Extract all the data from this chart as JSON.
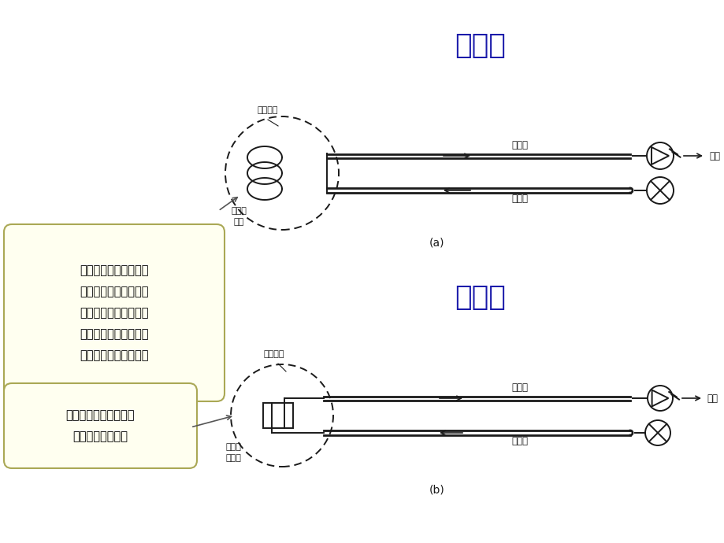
{
  "bg_color": "#ffffff",
  "title1": "传感型",
  "title2": "传光型",
  "title_color": "#1a1aaa",
  "title_fontsize": 26,
  "box1_text": "光纤本身起敏感元件的\n作用。光纤与被测物理\n量相互作用时，光纤自\n身的结构参量或者光纤\n的传光特性发生变化。",
  "box2_text": "光纤不做为敏感器件，\n只起传到光的作用",
  "box_bg": "#fffff0",
  "box_border": "#aaa855",
  "label_a": "(a)",
  "label_b": "(b)",
  "text_被测对象1": "被测对象",
  "text_敏感光纤头": "敏感光\n纤头",
  "text_空载波1": "空载波",
  "text_调制波1": "调制波",
  "text_信息1": "信息",
  "text_被测对象2": "被测对象",
  "text_光转换敏感头": "光转换\n敏感头",
  "text_空载波2": "空载波",
  "text_调制波2": "调制波",
  "text_信息2": "信息",
  "dc": "#1a1a1a",
  "lw": 1.4
}
